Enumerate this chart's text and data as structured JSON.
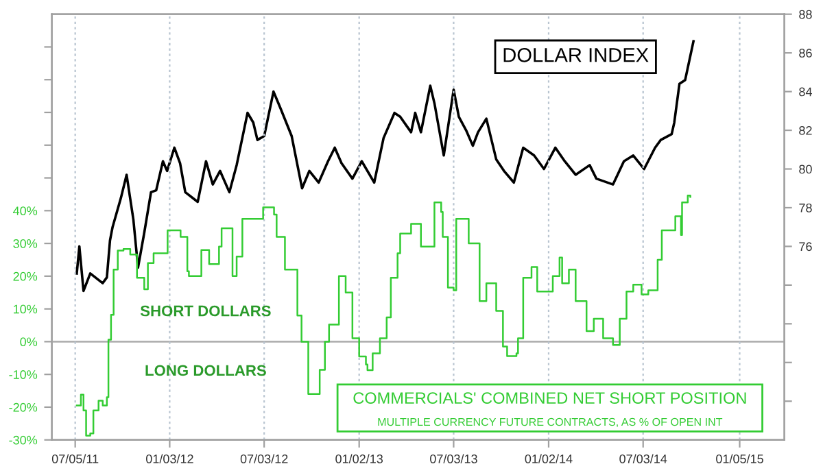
{
  "chart_data": {
    "type": "line",
    "xlim": [
      "2011-05-21",
      "2015-04-01"
    ],
    "xticks": [
      {
        "value": "2011-07-05",
        "label": "07/05/11"
      },
      {
        "value": "2012-01-03",
        "label": "01/03/12"
      },
      {
        "value": "2012-07-03",
        "label": "07/03/12"
      },
      {
        "value": "2013-01-02",
        "label": "01/02/13"
      },
      {
        "value": "2013-07-03",
        "label": "07/03/13"
      },
      {
        "value": "2014-01-02",
        "label": "01/02/14"
      },
      {
        "value": "2014-07-03",
        "label": "07/03/14"
      },
      {
        "value": "2015-01-05",
        "label": "01/05/15"
      }
    ],
    "ylim": [
      -30,
      100
    ],
    "yticks": [
      {
        "value": -30,
        "label": "-30%"
      },
      {
        "value": -20,
        "label": "-20%"
      },
      {
        "value": -10,
        "label": "-10%"
      },
      {
        "value": 0,
        "label": "0%"
      },
      {
        "value": 10,
        "label": "10%"
      },
      {
        "value": 20,
        "label": "20%"
      },
      {
        "value": 30,
        "label": "30%"
      },
      {
        "value": 40,
        "label": "40%"
      },
      {
        "value": 50,
        "label": null
      },
      {
        "value": 60,
        "label": null
      },
      {
        "value": 70,
        "label": null
      },
      {
        "value": 80,
        "label": null
      },
      {
        "value": 90,
        "label": null
      }
    ],
    "y2lim": [
      66,
      88
    ],
    "y2ticks": [
      {
        "value": 68,
        "label": null
      },
      {
        "value": 70,
        "label": null
      },
      {
        "value": 72,
        "label": null
      },
      {
        "value": 74,
        "label": null
      },
      76,
      78,
      80,
      82,
      84,
      86,
      88
    ],
    "grid": "x",
    "legend": false,
    "ref_lines": [
      {
        "axis": "y",
        "value": 0,
        "color": "#b0b0b0"
      }
    ],
    "annotations": [
      "SHORT DOLLARS",
      "LONG DOLLARS",
      "MULTIPLE CURRENCY FUTURE CONTRACTS, AS % OF OPEN INT"
    ],
    "series": [
      {
        "name": "DOLLAR INDEX",
        "axis": "y2",
        "color": "#000000",
        "x": [
          "2011-07-08",
          "2011-07-13",
          "2011-07-21",
          "2011-08-03",
          "2011-08-27",
          "2011-09-04",
          "2011-09-10",
          "2011-09-15",
          "2011-10-01",
          "2011-10-12",
          "2011-10-25",
          "2011-11-03",
          "2011-11-15",
          "2011-11-28",
          "2011-12-08",
          "2011-12-21",
          "2011-12-29",
          "2012-01-12",
          "2012-01-23",
          "2012-02-02",
          "2012-02-26",
          "2012-03-13",
          "2012-03-26",
          "2012-04-09",
          "2012-04-27",
          "2012-05-11",
          "2012-06-01",
          "2012-06-12",
          "2012-06-20",
          "2012-07-03",
          "2012-07-21",
          "2012-08-04",
          "2012-08-25",
          "2012-09-14",
          "2012-09-28",
          "2012-10-16",
          "2012-11-03",
          "2012-11-16",
          "2012-11-29",
          "2012-12-20",
          "2013-01-07",
          "2013-01-31",
          "2013-02-18",
          "2013-03-11",
          "2013-03-22",
          "2013-04-12",
          "2013-04-20",
          "2013-05-01",
          "2013-05-19",
          "2013-05-27",
          "2013-06-14",
          "2013-07-03",
          "2013-07-13",
          "2013-07-27",
          "2013-08-09",
          "2013-08-19",
          "2013-09-04",
          "2013-09-23",
          "2013-10-08",
          "2013-10-27",
          "2013-11-14",
          "2013-12-05",
          "2013-12-24",
          "2014-01-15",
          "2014-02-02",
          "2014-02-23",
          "2014-03-22",
          "2014-04-04",
          "2014-05-06",
          "2014-05-27",
          "2014-06-14",
          "2014-07-05",
          "2014-07-26",
          "2014-08-06",
          "2014-08-27",
          "2014-09-01",
          "2014-09-11",
          "2014-09-22",
          "2014-09-30",
          "2014-10-08"
        ],
        "values": [
          74.6,
          76.0,
          73.7,
          74.6,
          74.1,
          74.4,
          76.3,
          77.0,
          78.5,
          79.7,
          77.4,
          74.9,
          76.7,
          78.8,
          78.9,
          80.4,
          79.9,
          81.1,
          80.3,
          78.8,
          78.3,
          80.4,
          79.2,
          79.9,
          78.8,
          80.2,
          82.9,
          82.4,
          81.5,
          81.7,
          84.0,
          83.1,
          81.7,
          79.0,
          79.9,
          79.3,
          80.4,
          81.1,
          80.3,
          79.5,
          80.4,
          79.3,
          81.6,
          82.9,
          82.7,
          81.9,
          82.9,
          81.9,
          84.3,
          83.4,
          80.7,
          84.1,
          82.7,
          82.0,
          81.2,
          81.9,
          82.6,
          80.5,
          79.9,
          79.3,
          81.1,
          80.7,
          80.0,
          81.1,
          80.4,
          79.7,
          80.2,
          79.5,
          79.2,
          80.4,
          80.7,
          80.0,
          81.1,
          81.5,
          81.8,
          82.4,
          84.4,
          84.6,
          85.6,
          86.6
        ]
      },
      {
        "name": "COMMERCIALS' COMBINED NET SHORT POSITION",
        "type": "step",
        "color": "#33cc33",
        "x": [
          "2011-07-08",
          "2011-07-16",
          "2011-07-21",
          "2011-07-26",
          "2011-08-03",
          "2011-08-09",
          "2011-08-19",
          "2011-08-27",
          "2011-09-04",
          "2011-09-07",
          "2011-09-12",
          "2011-09-17",
          "2011-09-25",
          "2011-10-06",
          "2011-10-19",
          "2011-11-01",
          "2011-11-15",
          "2011-11-22",
          "2011-12-03",
          "2011-12-30",
          "2012-01-24",
          "2012-02-06",
          "2012-02-09",
          "2012-03-04",
          "2012-03-19",
          "2012-04-07",
          "2012-04-12",
          "2012-05-03",
          "2012-05-11",
          "2012-05-22",
          "2012-07-01",
          "2012-07-22",
          "2012-07-27",
          "2012-08-12",
          "2012-09-05",
          "2012-09-13",
          "2012-09-26",
          "2012-10-10",
          "2012-10-18",
          "2012-10-28",
          "2012-11-05",
          "2012-11-24",
          "2012-12-07",
          "2012-12-20",
          "2013-01-02",
          "2013-01-15",
          "2013-01-18",
          "2013-01-28",
          "2013-02-11",
          "2013-02-24",
          "2013-03-04",
          "2013-03-17",
          "2013-03-22",
          "2013-04-12",
          "2013-05-01",
          "2013-05-27",
          "2013-06-09",
          "2013-06-12",
          "2013-06-22",
          "2013-07-03",
          "2013-07-08",
          "2013-07-21",
          "2013-08-01",
          "2013-08-22",
          "2013-09-04",
          "2013-09-23",
          "2013-10-06",
          "2013-10-14",
          "2013-11-01",
          "2013-11-04",
          "2013-11-14",
          "2013-11-30",
          "2013-12-11",
          "2014-01-02",
          "2014-01-10",
          "2014-01-23",
          "2014-01-28",
          "2014-02-10",
          "2014-02-23",
          "2014-03-16",
          "2014-03-30",
          "2014-04-17",
          "2014-05-06",
          "2014-05-19",
          "2014-06-01",
          "2014-06-14",
          "2014-06-30",
          "2014-07-13",
          "2014-07-31",
          "2014-08-08",
          "2014-09-03",
          "2014-09-14",
          "2014-09-16",
          "2014-09-27",
          "2014-10-02"
        ],
        "values": [
          -19.5,
          -16.2,
          -21,
          -28.7,
          -28,
          -21,
          -18,
          -19.5,
          -17,
          0.6,
          8.2,
          22,
          27.8,
          28.3,
          26.6,
          19.5,
          16,
          24,
          27,
          34,
          32,
          21.5,
          20,
          28,
          23.7,
          29,
          34.6,
          20,
          26,
          37.5,
          41,
          38.8,
          32,
          22,
          8,
          0,
          -16,
          -16,
          -8.6,
          0,
          5.2,
          20,
          15,
          1,
          -4.5,
          -7,
          -8.7,
          -3.6,
          1,
          7.4,
          19.5,
          27,
          33,
          36,
          29,
          42.5,
          39.6,
          32,
          16.5,
          15.7,
          37.5,
          37.5,
          30,
          12.4,
          17.8,
          9.4,
          -1.5,
          -4.4,
          -3.6,
          1,
          19.5,
          22.8,
          15.3,
          15.3,
          20,
          25.7,
          17.8,
          22,
          12.4,
          3.2,
          7,
          1,
          -1,
          7,
          15.3,
          17.4,
          14.4,
          15.7,
          25,
          34,
          38.3,
          32.6,
          42.5,
          44.6,
          44.2
        ]
      }
    ]
  }
}
